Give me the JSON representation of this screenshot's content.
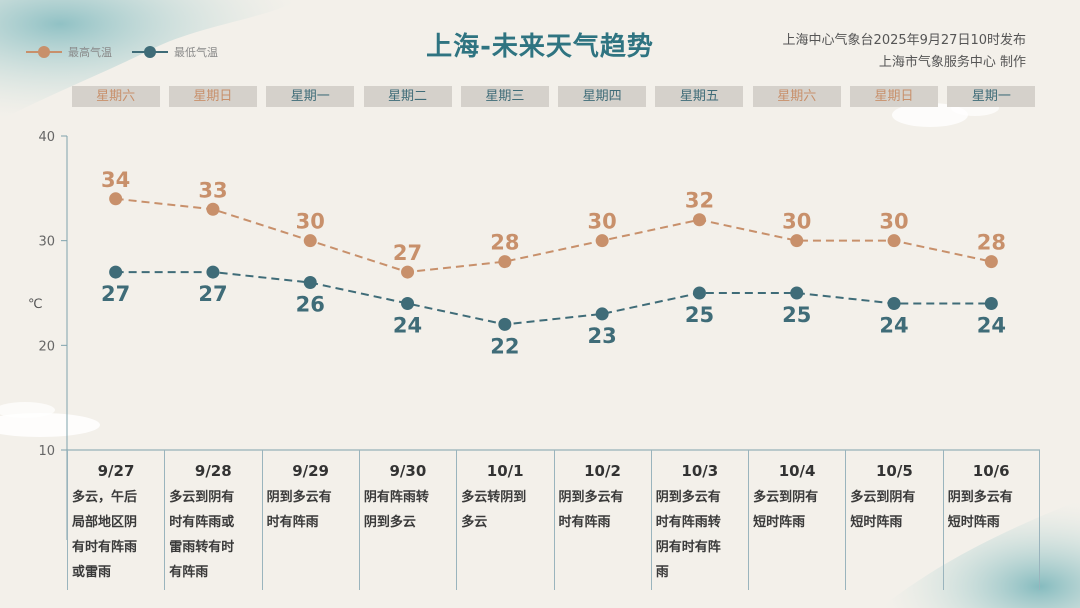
{
  "title": "上海-未来天气趋势",
  "source_line1": "上海中心气象台2025年9月27日10时发布",
  "source_line2": "上海市气象服务中心 制作",
  "legend": {
    "high_label": "最高气温",
    "low_label": "最低气温"
  },
  "unit": "℃",
  "colors": {
    "title": "#2f7481",
    "high": "#c8906b",
    "low": "#3f6c78",
    "weekend_text": "#c8906b",
    "weekday_text": "#3f6c78",
    "axis": "#7fa2ac"
  },
  "weekdays": [
    {
      "label": "星期六",
      "weekend": true
    },
    {
      "label": "星期日",
      "weekend": true
    },
    {
      "label": "星期一",
      "weekend": false
    },
    {
      "label": "星期二",
      "weekend": false
    },
    {
      "label": "星期三",
      "weekend": false
    },
    {
      "label": "星期四",
      "weekend": false
    },
    {
      "label": "星期五",
      "weekend": false
    },
    {
      "label": "星期六",
      "weekend": true
    },
    {
      "label": "星期日",
      "weekend": true
    },
    {
      "label": "星期一",
      "weekend": false
    }
  ],
  "days": [
    {
      "date": "9/27",
      "desc": [
        "多云，午后",
        "局部地区阴",
        "有时有阵雨",
        "或雷雨"
      ]
    },
    {
      "date": "9/28",
      "desc": [
        "多云到阴有",
        "时有阵雨或",
        "雷雨转有时",
        "有阵雨"
      ]
    },
    {
      "date": "9/29",
      "desc": [
        "阴到多云有",
        "时有阵雨"
      ]
    },
    {
      "date": "9/30",
      "desc": [
        "阴有阵雨转",
        "阴到多云"
      ]
    },
    {
      "date": "10/1",
      "desc": [
        "多云转阴到",
        "多云"
      ]
    },
    {
      "date": "10/2",
      "desc": [
        "阴到多云有",
        "时有阵雨"
      ]
    },
    {
      "date": "10/3",
      "desc": [
        "阴到多云有",
        "时有阵雨转",
        "阴有时有阵",
        "雨"
      ]
    },
    {
      "date": "10/4",
      "desc": [
        "多云到阴有",
        "短时阵雨"
      ]
    },
    {
      "date": "10/5",
      "desc": [
        "多云到阴有",
        "短时阵雨"
      ]
    },
    {
      "date": "10/6",
      "desc": [
        "阴到多云有",
        "短时阵雨"
      ]
    }
  ],
  "chart_data": {
    "type": "line",
    "categories": [
      "9/27",
      "9/28",
      "9/29",
      "9/30",
      "10/1",
      "10/2",
      "10/3",
      "10/4",
      "10/5",
      "10/6"
    ],
    "series": [
      {
        "name": "最高气温",
        "values": [
          34,
          33,
          30,
          27,
          28,
          30,
          32,
          30,
          30,
          28
        ]
      },
      {
        "name": "最低气温",
        "values": [
          27,
          27,
          26,
          24,
          22,
          23,
          25,
          25,
          24,
          24
        ]
      }
    ],
    "ylim": [
      10,
      40
    ],
    "yticks": [
      10,
      20,
      30,
      40
    ],
    "ylabel": "℃",
    "line_style": "dashed",
    "grid": false,
    "legend_position": "top-left"
  }
}
